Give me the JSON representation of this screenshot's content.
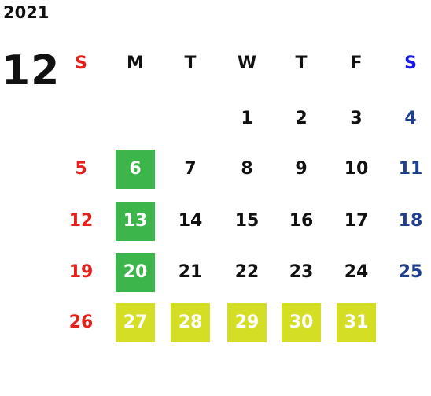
{
  "year": "2021",
  "month": "12",
  "weekdays": [
    "S",
    "M",
    "T",
    "W",
    "T",
    "F",
    "S"
  ],
  "weekday_colors": [
    "#e3201b",
    "#111111",
    "#111111",
    "#111111",
    "#111111",
    "#111111",
    "#1a1ae0"
  ],
  "day_colors": [
    "#e3201b",
    "#111111",
    "#111111",
    "#111111",
    "#111111",
    "#111111",
    "#1f3f8f"
  ],
  "weeks": [
    [
      null,
      null,
      null,
      "1",
      "2",
      "3",
      "4"
    ],
    [
      "5",
      "6",
      "7",
      "8",
      "9",
      "10",
      "11"
    ],
    [
      "12",
      "13",
      "14",
      "15",
      "16",
      "17",
      "18"
    ],
    [
      "19",
      "20",
      "21",
      "22",
      "23",
      "24",
      "25"
    ],
    [
      "26",
      "27",
      "28",
      "29",
      "30",
      "31",
      null
    ]
  ],
  "highlights": [
    [
      null,
      null,
      null,
      null,
      null,
      null,
      null
    ],
    [
      null,
      "#3cb54a",
      null,
      null,
      null,
      null,
      null
    ],
    [
      null,
      "#3cb54a",
      null,
      null,
      null,
      null,
      null
    ],
    [
      null,
      "#3cb54a",
      null,
      null,
      null,
      null,
      null
    ],
    [
      null,
      "#d4de24",
      "#d4de24",
      "#d4de24",
      "#d4de24",
      "#d4de24",
      null
    ]
  ]
}
